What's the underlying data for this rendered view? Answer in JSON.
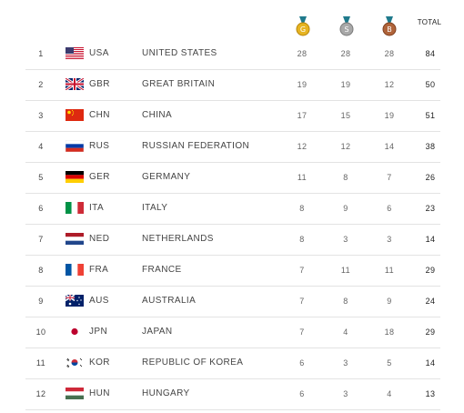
{
  "header": {
    "gold_icon": "gold-medal-icon",
    "silver_icon": "silver-medal-icon",
    "bronze_icon": "bronze-medal-icon",
    "gold_letter": "G",
    "silver_letter": "S",
    "bronze_letter": "B",
    "total_label": "TOTAL"
  },
  "rows": [
    {
      "rank": "1",
      "code": "USA",
      "name": "UNITED STATES",
      "gold": "28",
      "silver": "28",
      "bronze": "28",
      "total": "84"
    },
    {
      "rank": "2",
      "code": "GBR",
      "name": "GREAT BRITAIN",
      "gold": "19",
      "silver": "19",
      "bronze": "12",
      "total": "50"
    },
    {
      "rank": "3",
      "code": "CHN",
      "name": "CHINA",
      "gold": "17",
      "silver": "15",
      "bronze": "19",
      "total": "51"
    },
    {
      "rank": "4",
      "code": "RUS",
      "name": "RUSSIAN FEDERATION",
      "gold": "12",
      "silver": "12",
      "bronze": "14",
      "total": "38"
    },
    {
      "rank": "5",
      "code": "GER",
      "name": "GERMANY",
      "gold": "11",
      "silver": "8",
      "bronze": "7",
      "total": "26"
    },
    {
      "rank": "6",
      "code": "ITA",
      "name": "ITALY",
      "gold": "8",
      "silver": "9",
      "bronze": "6",
      "total": "23"
    },
    {
      "rank": "7",
      "code": "NED",
      "name": "NETHERLANDS",
      "gold": "8",
      "silver": "3",
      "bronze": "3",
      "total": "14"
    },
    {
      "rank": "8",
      "code": "FRA",
      "name": "FRANCE",
      "gold": "7",
      "silver": "11",
      "bronze": "11",
      "total": "29"
    },
    {
      "rank": "9",
      "code": "AUS",
      "name": "AUSTRALIA",
      "gold": "7",
      "silver": "8",
      "bronze": "9",
      "total": "24"
    },
    {
      "rank": "10",
      "code": "JPN",
      "name": "JAPAN",
      "gold": "7",
      "silver": "4",
      "bronze": "18",
      "total": "29"
    },
    {
      "rank": "11",
      "code": "KOR",
      "name": "REPUBLIC OF KOREA",
      "gold": "6",
      "silver": "3",
      "bronze": "5",
      "total": "14"
    },
    {
      "rank": "12",
      "code": "HUN",
      "name": "HUNGARY",
      "gold": "6",
      "silver": "3",
      "bronze": "4",
      "total": "13"
    }
  ],
  "colors": {
    "gold": "#d9a520",
    "silver": "#9a9a9a",
    "bronze": "#a0522d",
    "row_border": "#e3e3e3"
  }
}
